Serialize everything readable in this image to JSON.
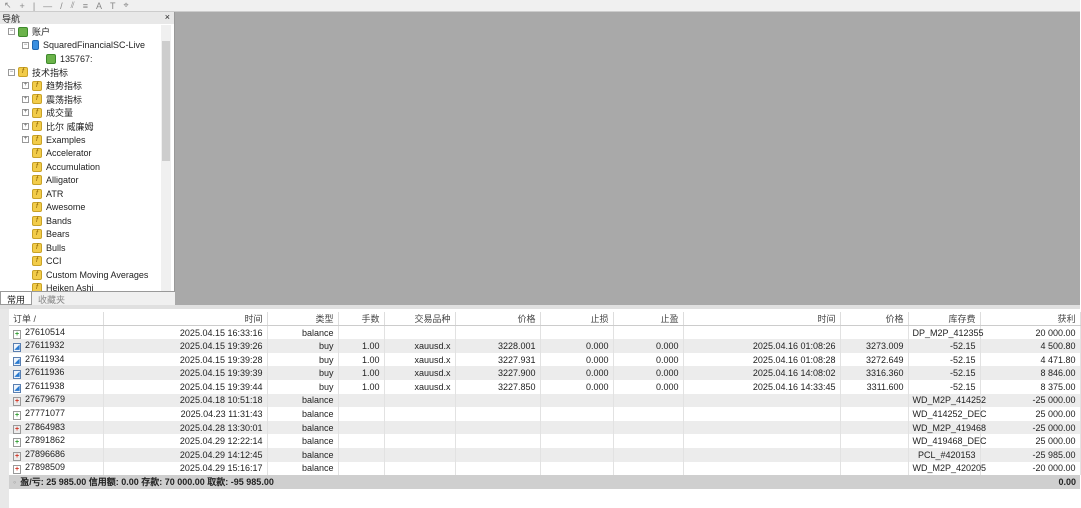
{
  "toolbar": {
    "icons": [
      "cursor-icon",
      "crosshair-icon",
      "vertical-line-icon",
      "horizontal-line-icon",
      "trendline-icon",
      "channel-icon",
      "fibonacci-icon",
      "text-icon",
      "label-icon",
      "shapes-icon"
    ]
  },
  "navigator": {
    "title": "导航",
    "close": "×",
    "items": [
      {
        "label": "账户",
        "level": 0,
        "icon": "account",
        "pm": "−"
      },
      {
        "label": "SquaredFinancialSC-Live",
        "level": 1,
        "icon": "server",
        "pm": "−"
      },
      {
        "label": "135767: ",
        "level": 2,
        "icon": "account",
        "pm": ""
      },
      {
        "label": "技术指标",
        "level": 0,
        "icon": "folder",
        "pm": "−"
      },
      {
        "label": "趋势指标",
        "level": 1,
        "icon": "folder",
        "pm": "+"
      },
      {
        "label": "震荡指标",
        "level": 1,
        "icon": "folder",
        "pm": "+"
      },
      {
        "label": "成交量",
        "level": 1,
        "icon": "folder",
        "pm": "+"
      },
      {
        "label": "比尔 威廉姆",
        "level": 1,
        "icon": "folder",
        "pm": "+"
      },
      {
        "label": "Examples",
        "level": 1,
        "icon": "indicator",
        "pm": "+"
      },
      {
        "label": "Accelerator",
        "level": 1,
        "icon": "indicator",
        "pm": ""
      },
      {
        "label": "Accumulation",
        "level": 1,
        "icon": "indicator",
        "pm": ""
      },
      {
        "label": "Alligator",
        "level": 1,
        "icon": "indicator",
        "pm": ""
      },
      {
        "label": "ATR",
        "level": 1,
        "icon": "indicator",
        "pm": ""
      },
      {
        "label": "Awesome",
        "level": 1,
        "icon": "indicator",
        "pm": ""
      },
      {
        "label": "Bands",
        "level": 1,
        "icon": "indicator",
        "pm": ""
      },
      {
        "label": "Bears",
        "level": 1,
        "icon": "indicator",
        "pm": ""
      },
      {
        "label": "Bulls",
        "level": 1,
        "icon": "indicator",
        "pm": ""
      },
      {
        "label": "CCI",
        "level": 1,
        "icon": "indicator",
        "pm": ""
      },
      {
        "label": "Custom Moving Averages",
        "level": 1,
        "icon": "indicator",
        "pm": ""
      },
      {
        "label": "Heiken Ashi",
        "level": 1,
        "icon": "indicator",
        "pm": ""
      }
    ],
    "tabs": [
      "常用",
      "收藏夹"
    ]
  },
  "history": {
    "columns": [
      "订单 /",
      "时间",
      "类型",
      "手数",
      "交易品种",
      "价格",
      "止损",
      "止盈",
      "时间",
      "价格",
      "库存费",
      "获利"
    ],
    "rows": [
      {
        "icon": "plus",
        "cells": [
          "27610514",
          "2025.04.15 16:33:16",
          "balance",
          "",
          "",
          "",
          "",
          "",
          "",
          "",
          "DP_M2P_412355",
          "20 000.00"
        ]
      },
      {
        "icon": "doc",
        "cells": [
          "27611932",
          "2025.04.15 19:39:26",
          "buy",
          "1.00",
          "xauusd.x",
          "3228.001",
          "0.000",
          "0.000",
          "2025.04.16 01:08:26",
          "3273.009",
          "-52.15",
          "4 500.80"
        ]
      },
      {
        "icon": "doc",
        "cells": [
          "27611934",
          "2025.04.15 19:39:28",
          "buy",
          "1.00",
          "xauusd.x",
          "3227.931",
          "0.000",
          "0.000",
          "2025.04.16 01:08:28",
          "3272.649",
          "-52.15",
          "4 471.80"
        ]
      },
      {
        "icon": "doc",
        "cells": [
          "27611936",
          "2025.04.15 19:39:39",
          "buy",
          "1.00",
          "xauusd.x",
          "3227.900",
          "0.000",
          "0.000",
          "2025.04.16 14:08:02",
          "3316.360",
          "-52.15",
          "8 846.00"
        ]
      },
      {
        "icon": "doc",
        "cells": [
          "27611938",
          "2025.04.15 19:39:44",
          "buy",
          "1.00",
          "xauusd.x",
          "3227.850",
          "0.000",
          "0.000",
          "2025.04.16 14:33:45",
          "3311.600",
          "-52.15",
          "8 375.00"
        ]
      },
      {
        "icon": "minus",
        "cells": [
          "27679679",
          "2025.04.18 10:51:18",
          "balance",
          "",
          "",
          "",
          "",
          "",
          "",
          "",
          "WD_M2P_414252",
          "-25 000.00"
        ]
      },
      {
        "icon": "plus",
        "cells": [
          "27771077",
          "2025.04.23 11:31:43",
          "balance",
          "",
          "",
          "",
          "",
          "",
          "",
          "",
          "WD_414252_DEC",
          "25 000.00"
        ]
      },
      {
        "icon": "minus",
        "cells": [
          "27864983",
          "2025.04.28 13:30:01",
          "balance",
          "",
          "",
          "",
          "",
          "",
          "",
          "",
          "WD_M2P_419468",
          "-25 000.00"
        ]
      },
      {
        "icon": "plus",
        "cells": [
          "27891862",
          "2025.04.29 12:22:14",
          "balance",
          "",
          "",
          "",
          "",
          "",
          "",
          "",
          "WD_419468_DEC",
          "25 000.00"
        ]
      },
      {
        "icon": "minus",
        "cells": [
          "27896686",
          "2025.04.29 14:12:45",
          "balance",
          "",
          "",
          "",
          "",
          "",
          "",
          "",
          "PCL_#420153",
          "-25 985.00"
        ]
      },
      {
        "icon": "minus",
        "cells": [
          "27898509",
          "2025.04.29 15:16:17",
          "balance",
          "",
          "",
          "",
          "",
          "",
          "",
          "",
          "WD_M2P_420205",
          "-20 000.00"
        ]
      }
    ],
    "summary": {
      "text": "盈/亏: 25 985.00  信用额: 0.00  存款: 70 000.00  取款: -95 985.00",
      "total": "0.00"
    }
  }
}
